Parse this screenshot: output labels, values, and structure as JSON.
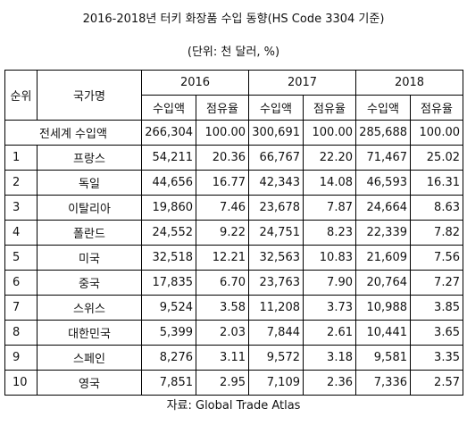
{
  "title": "2016-2018년 터키 화장품 수입 동향(HS Code 3304 기준)",
  "unit": "(단위: 천 달러, %)",
  "header": {
    "rank": "순위",
    "country": "국가명",
    "years": [
      "2016",
      "2017",
      "2018"
    ],
    "sub": [
      "수입액",
      "점유율"
    ]
  },
  "total": {
    "label": "전세계 수입액",
    "values": [
      "266,304",
      "100.00",
      "300,691",
      "100.00",
      "285,688",
      "100.00"
    ]
  },
  "rows": [
    {
      "rank": "1",
      "country": "프랑스",
      "values": [
        "54,211",
        "20.36",
        "66,767",
        "22.20",
        "71,467",
        "25.02"
      ]
    },
    {
      "rank": "2",
      "country": "독일",
      "values": [
        "44,656",
        "16.77",
        "42,343",
        "14.08",
        "46,593",
        "16.31"
      ]
    },
    {
      "rank": "3",
      "country": "이탈리아",
      "values": [
        "19,860",
        "7.46",
        "23,678",
        "7.87",
        "24,664",
        "8.63"
      ]
    },
    {
      "rank": "4",
      "country": "폴란드",
      "values": [
        "24,552",
        "9.22",
        "24,751",
        "8.23",
        "22,339",
        "7.82"
      ]
    },
    {
      "rank": "5",
      "country": "미국",
      "values": [
        "32,518",
        "12.21",
        "32,563",
        "10.83",
        "21,609",
        "7.56"
      ]
    },
    {
      "rank": "6",
      "country": "중국",
      "values": [
        "17,835",
        "6.70",
        "23,763",
        "7.90",
        "20,764",
        "7.27"
      ]
    },
    {
      "rank": "7",
      "country": "스위스",
      "values": [
        "9,524",
        "3.58",
        "11,208",
        "3.73",
        "10,988",
        "3.85"
      ]
    },
    {
      "rank": "8",
      "country": "대한민국",
      "values": [
        "5,399",
        "2.03",
        "7,844",
        "2.61",
        "10,441",
        "3.65"
      ]
    },
    {
      "rank": "9",
      "country": "스페인",
      "values": [
        "8,276",
        "3.11",
        "9,572",
        "3.18",
        "9,581",
        "3.35"
      ]
    },
    {
      "rank": "10",
      "country": "영국",
      "values": [
        "7,851",
        "2.95",
        "7,109",
        "2.36",
        "7,336",
        "2.57"
      ]
    }
  ],
  "source": "자료: Global Trade Atlas"
}
